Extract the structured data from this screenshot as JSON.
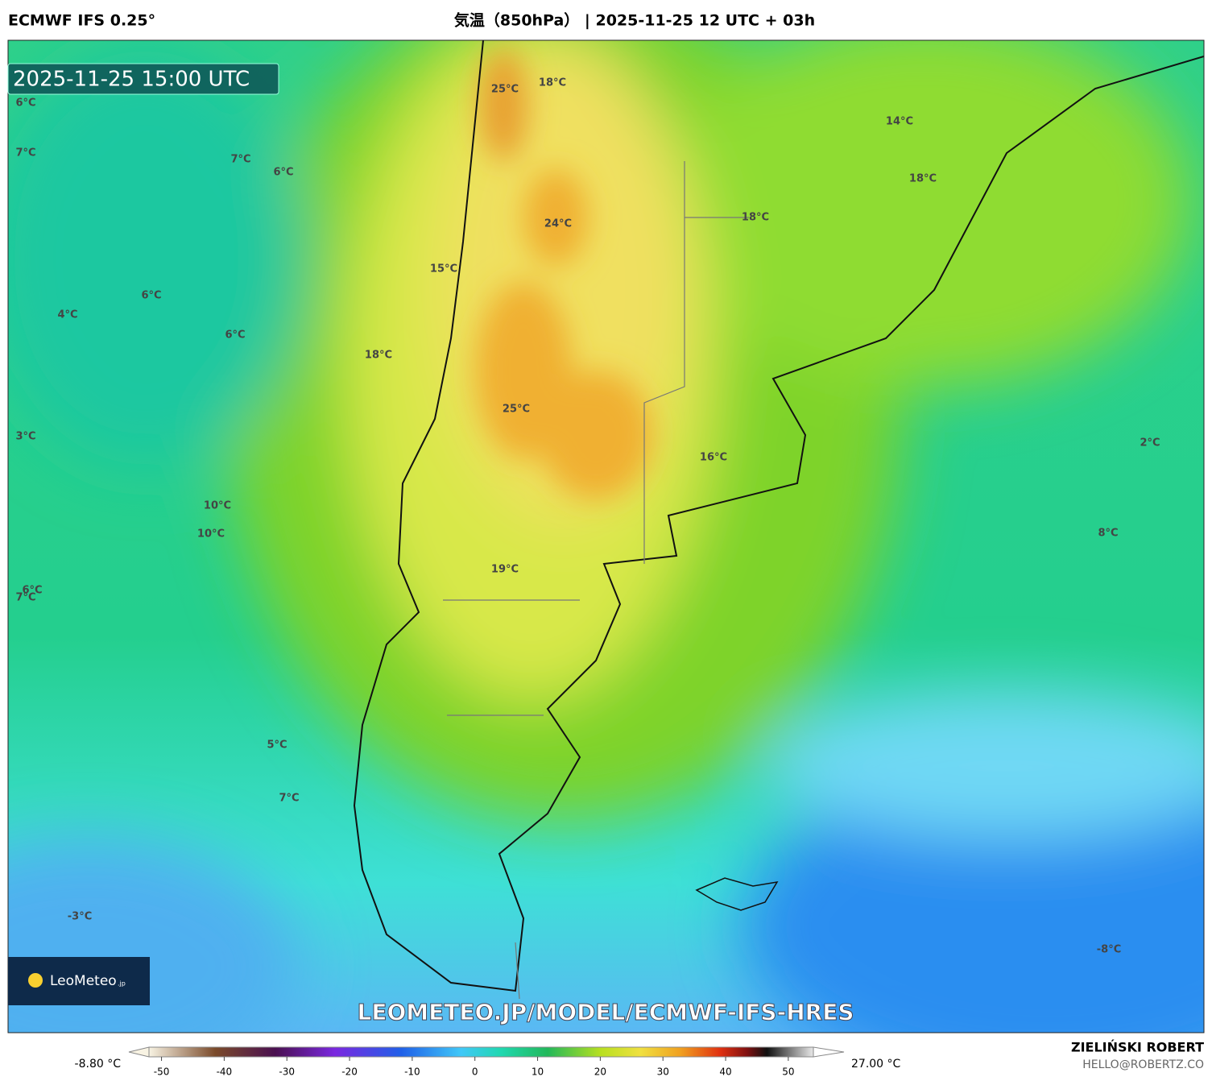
{
  "header": {
    "model": "ECMWF IFS 0.25°",
    "title": "気温（850hPa） | 2025-11-25 12 UTC + 03h"
  },
  "valid_time": "2025-11-25 15:00 UTC",
  "map_labels": [
    "25°C",
    "18°C",
    "14°C",
    "6°C",
    "7°C",
    "7°C",
    "6°C",
    "18°C",
    "18°C",
    "24°C",
    "15°C",
    "6°C",
    "4°C",
    "6°C",
    "18°C",
    "25°C",
    "3°C",
    "2°C",
    "16°C",
    "10°C",
    "10°C",
    "8°C",
    "19°C",
    "6°C",
    "7°C",
    "5°C",
    "7°C",
    "-3°C",
    "-8°C"
  ],
  "logo": {
    "brand": "LeoMeteo",
    "suffix": ".jp"
  },
  "watermark": "LEOMETEO.JP/MODEL/ECMWF-IFS-HRES",
  "colorbar": {
    "min_label": "-8.80 °C",
    "max_label": "27.00 °C",
    "lim": [
      -52,
      54
    ],
    "ticks": [
      -50,
      -40,
      -30,
      -20,
      -10,
      0,
      10,
      20,
      30,
      40,
      50
    ]
  },
  "credit": {
    "author": "ZIELIŃSKI ROBERT",
    "email": "HELLO@ROBERTZ.CO"
  }
}
